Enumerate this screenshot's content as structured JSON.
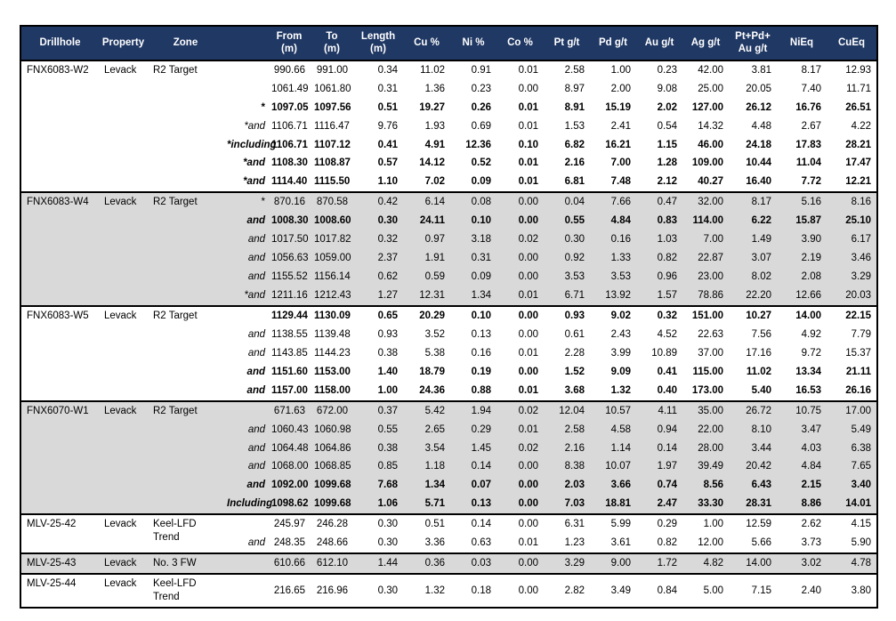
{
  "styles": {
    "header_bg": "#203864",
    "header_text": "#ffffff",
    "gray_row": "#d9d9d9",
    "border": "#000000"
  },
  "table": {
    "headers": [
      {
        "line1": "Drillhole",
        "line2": ""
      },
      {
        "line1": "Property",
        "line2": ""
      },
      {
        "line1": "Zone",
        "line2": ""
      },
      {
        "line1": "",
        "line2": ""
      },
      {
        "line1": "From",
        "line2": "(m)"
      },
      {
        "line1": "To",
        "line2": "(m)"
      },
      {
        "line1": "Length",
        "line2": "(m)"
      },
      {
        "line1": "Cu %",
        "line2": ""
      },
      {
        "line1": "Ni %",
        "line2": ""
      },
      {
        "line1": "Co %",
        "line2": ""
      },
      {
        "line1": "Pt g/t",
        "line2": ""
      },
      {
        "line1": "Pd g/t",
        "line2": ""
      },
      {
        "line1": "Au g/t",
        "line2": ""
      },
      {
        "line1": "Ag g/t",
        "line2": ""
      },
      {
        "line1": "Pt+Pd+",
        "line2": "Au g/t"
      },
      {
        "line1": "NiEq",
        "line2": ""
      },
      {
        "line1": "CuEq",
        "line2": ""
      }
    ],
    "groups": [
      {
        "drillhole": "FNX6083-W2",
        "property": "Levack",
        "zone_lines": [
          "R2 Target"
        ],
        "shade": "white",
        "rows": [
          {
            "qual": "",
            "qs": "",
            "bold": false,
            "values": [
              "990.66",
              "991.00",
              "0.34",
              "11.02",
              "0.91",
              "0.01",
              "2.58",
              "1.00",
              "0.23",
              "42.00",
              "3.81",
              "8.17",
              "12.93"
            ]
          },
          {
            "qual": "",
            "qs": "",
            "bold": false,
            "values": [
              "1061.49",
              "1061.80",
              "0.31",
              "1.36",
              "0.23",
              "0.00",
              "8.97",
              "2.00",
              "9.08",
              "25.00",
              "20.05",
              "7.40",
              "11.71"
            ]
          },
          {
            "qual": "*",
            "qs": "b",
            "bold": true,
            "values": [
              "1097.05",
              "1097.56",
              "0.51",
              "19.27",
              "0.26",
              "0.01",
              "8.91",
              "15.19",
              "2.02",
              "127.00",
              "26.12",
              "16.76",
              "26.51"
            ]
          },
          {
            "qual": "*and",
            "qs": "i",
            "bold": false,
            "values": [
              "1106.71",
              "1116.47",
              "9.76",
              "1.93",
              "0.69",
              "0.01",
              "1.53",
              "2.41",
              "0.54",
              "14.32",
              "4.48",
              "2.67",
              "4.22"
            ]
          },
          {
            "qual": "*including",
            "qs": "bi",
            "bold": true,
            "values": [
              "1106.71",
              "1107.12",
              "0.41",
              "4.91",
              "12.36",
              "0.10",
              "6.82",
              "16.21",
              "1.15",
              "46.00",
              "24.18",
              "17.83",
              "28.21"
            ]
          },
          {
            "qual": "*and",
            "qs": "bi",
            "bold": true,
            "values": [
              "1108.30",
              "1108.87",
              "0.57",
              "14.12",
              "0.52",
              "0.01",
              "2.16",
              "7.00",
              "1.28",
              "109.00",
              "10.44",
              "11.04",
              "17.47"
            ]
          },
          {
            "qual": "*and",
            "qs": "bi",
            "bold": true,
            "values": [
              "1114.40",
              "1115.50",
              "1.10",
              "7.02",
              "0.09",
              "0.01",
              "6.81",
              "7.48",
              "2.12",
              "40.27",
              "16.40",
              "7.72",
              "12.21"
            ]
          }
        ]
      },
      {
        "drillhole": "FNX6083-W4",
        "property": "Levack",
        "zone_lines": [
          "R2 Target"
        ],
        "shade": "gray",
        "rows": [
          {
            "qual": "*",
            "qs": "",
            "bold": false,
            "values": [
              "870.16",
              "870.58",
              "0.42",
              "6.14",
              "0.08",
              "0.00",
              "0.04",
              "7.66",
              "0.47",
              "32.00",
              "8.17",
              "5.16",
              "8.16"
            ]
          },
          {
            "qual": "and",
            "qs": "bi",
            "bold": true,
            "values": [
              "1008.30",
              "1008.60",
              "0.30",
              "24.11",
              "0.10",
              "0.00",
              "0.55",
              "4.84",
              "0.83",
              "114.00",
              "6.22",
              "15.87",
              "25.10"
            ]
          },
          {
            "qual": "and",
            "qs": "i",
            "bold": false,
            "values": [
              "1017.50",
              "1017.82",
              "0.32",
              "0.97",
              "3.18",
              "0.02",
              "0.30",
              "0.16",
              "1.03",
              "7.00",
              "1.49",
              "3.90",
              "6.17"
            ]
          },
          {
            "qual": "and",
            "qs": "i",
            "bold": false,
            "values": [
              "1056.63",
              "1059.00",
              "2.37",
              "1.91",
              "0.31",
              "0.00",
              "0.92",
              "1.33",
              "0.82",
              "22.87",
              "3.07",
              "2.19",
              "3.46"
            ]
          },
          {
            "qual": "and",
            "qs": "i",
            "bold": false,
            "values": [
              "1155.52",
              "1156.14",
              "0.62",
              "0.59",
              "0.09",
              "0.00",
              "3.53",
              "3.53",
              "0.96",
              "23.00",
              "8.02",
              "2.08",
              "3.29"
            ]
          },
          {
            "qual": "*and",
            "qs": "i",
            "bold": false,
            "values": [
              "1211.16",
              "1212.43",
              "1.27",
              "12.31",
              "1.34",
              "0.01",
              "6.71",
              "13.92",
              "1.57",
              "78.86",
              "22.20",
              "12.66",
              "20.03"
            ]
          }
        ]
      },
      {
        "drillhole": "FNX6083-W5",
        "property": "Levack",
        "zone_lines": [
          "R2 Target"
        ],
        "shade": "white",
        "rows": [
          {
            "qual": "",
            "qs": "",
            "bold": true,
            "values": [
              "1129.44",
              "1130.09",
              "0.65",
              "20.29",
              "0.10",
              "0.00",
              "0.93",
              "9.02",
              "0.32",
              "151.00",
              "10.27",
              "14.00",
              "22.15"
            ]
          },
          {
            "qual": "and",
            "qs": "i",
            "bold": false,
            "values": [
              "1138.55",
              "1139.48",
              "0.93",
              "3.52",
              "0.13",
              "0.00",
              "0.61",
              "2.43",
              "4.52",
              "22.63",
              "7.56",
              "4.92",
              "7.79"
            ]
          },
          {
            "qual": "and",
            "qs": "i",
            "bold": false,
            "values": [
              "1143.85",
              "1144.23",
              "0.38",
              "5.38",
              "0.16",
              "0.01",
              "2.28",
              "3.99",
              "10.89",
              "37.00",
              "17.16",
              "9.72",
              "15.37"
            ]
          },
          {
            "qual": "and",
            "qs": "bi",
            "bold": true,
            "values": [
              "1151.60",
              "1153.00",
              "1.40",
              "18.79",
              "0.19",
              "0.00",
              "1.52",
              "9.09",
              "0.41",
              "115.00",
              "11.02",
              "13.34",
              "21.11"
            ]
          },
          {
            "qual": "and",
            "qs": "bi",
            "bold": true,
            "values": [
              "1157.00",
              "1158.00",
              "1.00",
              "24.36",
              "0.88",
              "0.01",
              "3.68",
              "1.32",
              "0.40",
              "173.00",
              "5.40",
              "16.53",
              "26.16"
            ]
          }
        ]
      },
      {
        "drillhole": "FNX6070-W1",
        "property": "Levack",
        "zone_lines": [
          "R2 Target"
        ],
        "shade": "gray",
        "rows": [
          {
            "qual": "",
            "qs": "",
            "bold": false,
            "values": [
              "671.63",
              "672.00",
              "0.37",
              "5.42",
              "1.94",
              "0.02",
              "12.04",
              "10.57",
              "4.11",
              "35.00",
              "26.72",
              "10.75",
              "17.00"
            ]
          },
          {
            "qual": "and",
            "qs": "i",
            "bold": false,
            "values": [
              "1060.43",
              "1060.98",
              "0.55",
              "2.65",
              "0.29",
              "0.01",
              "2.58",
              "4.58",
              "0.94",
              "22.00",
              "8.10",
              "3.47",
              "5.49"
            ]
          },
          {
            "qual": "and",
            "qs": "i",
            "bold": false,
            "values": [
              "1064.48",
              "1064.86",
              "0.38",
              "3.54",
              "1.45",
              "0.02",
              "2.16",
              "1.14",
              "0.14",
              "28.00",
              "3.44",
              "4.03",
              "6.38"
            ]
          },
          {
            "qual": "and",
            "qs": "i",
            "bold": false,
            "values": [
              "1068.00",
              "1068.85",
              "0.85",
              "1.18",
              "0.14",
              "0.00",
              "8.38",
              "10.07",
              "1.97",
              "39.49",
              "20.42",
              "4.84",
              "7.65"
            ]
          },
          {
            "qual": "and",
            "qs": "bi",
            "bold": true,
            "values": [
              "1092.00",
              "1099.68",
              "7.68",
              "1.34",
              "0.07",
              "0.00",
              "2.03",
              "3.66",
              "0.74",
              "8.56",
              "6.43",
              "2.15",
              "3.40"
            ]
          },
          {
            "qual": "Including",
            "qs": "bi",
            "bold": true,
            "values": [
              "1098.62",
              "1099.68",
              "1.06",
              "5.71",
              "0.13",
              "0.00",
              "7.03",
              "18.81",
              "2.47",
              "33.30",
              "28.31",
              "8.86",
              "14.01"
            ]
          }
        ]
      },
      {
        "drillhole": "MLV-25-42",
        "property": "Levack",
        "zone_lines": [
          "Keel-LFD",
          "Trend"
        ],
        "shade": "white",
        "rows": [
          {
            "qual": "",
            "qs": "",
            "bold": false,
            "values": [
              "245.97",
              "246.28",
              "0.30",
              "0.51",
              "0.14",
              "0.00",
              "6.31",
              "5.99",
              "0.29",
              "1.00",
              "12.59",
              "2.62",
              "4.15"
            ]
          },
          {
            "qual": "and",
            "qs": "i",
            "bold": false,
            "values": [
              "248.35",
              "248.66",
              "0.30",
              "3.36",
              "0.63",
              "0.01",
              "1.23",
              "3.61",
              "0.82",
              "12.00",
              "5.66",
              "3.73",
              "5.90"
            ]
          }
        ]
      },
      {
        "drillhole": "MLV-25-43",
        "property": "Levack",
        "zone_lines": [
          "No. 3 FW"
        ],
        "shade": "gray",
        "rows": [
          {
            "qual": "",
            "qs": "",
            "bold": false,
            "values": [
              "610.66",
              "612.10",
              "1.44",
              "0.36",
              "0.03",
              "0.00",
              "3.29",
              "9.00",
              "1.72",
              "4.82",
              "14.00",
              "3.02",
              "4.78"
            ]
          }
        ]
      },
      {
        "drillhole": "MLV-25-44",
        "property": "Levack",
        "zone_lines": [
          "Keel-LFD",
          "Trend"
        ],
        "shade": "white",
        "rows": [
          {
            "qual": "",
            "qs": "",
            "bold": false,
            "values": [
              "216.65",
              "216.96",
              "0.30",
              "1.32",
              "0.18",
              "0.00",
              "2.82",
              "3.49",
              "0.84",
              "5.00",
              "7.15",
              "2.40",
              "3.80"
            ]
          }
        ]
      }
    ]
  }
}
